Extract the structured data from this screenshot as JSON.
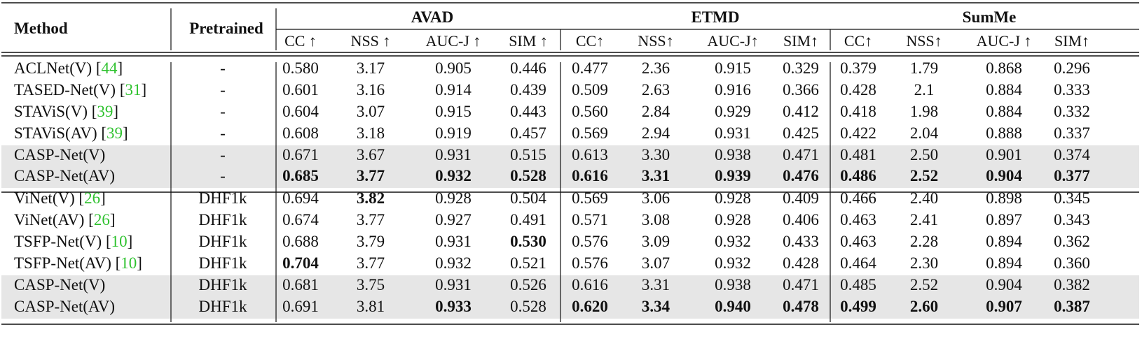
{
  "header": {
    "method": "Method",
    "pretrained": "Pretrained",
    "groups": [
      "AVAD",
      "ETMD",
      "SumMe"
    ],
    "metrics": [
      [
        "CC ↑",
        "NSS ↑",
        "AUC-J ↑",
        "SIM ↑"
      ],
      [
        "CC↑",
        "NSS↑",
        "AUC-J↑",
        "SIM↑"
      ],
      [
        "CC↑",
        "NSS↑",
        "AUC-J ↑",
        "SIM↑"
      ]
    ]
  },
  "rows": [
    {
      "name": "ACLNet(V) [",
      "ref": "44",
      "close": "]",
      "pre": "-",
      "shade": false,
      "vals": [
        "0.580",
        "3.17",
        "0.905",
        "0.446",
        "0.477",
        "2.36",
        "0.915",
        "0.329",
        "0.379",
        "1.79",
        "0.868",
        "0.296"
      ],
      "bold": []
    },
    {
      "name": "TASED-Net(V) [",
      "ref": "31",
      "close": "]",
      "pre": "-",
      "shade": false,
      "vals": [
        "0.601",
        "3.16",
        "0.914",
        "0.439",
        "0.509",
        "2.63",
        "0.916",
        "0.366",
        "0.428",
        "2.1",
        "0.884",
        "0.333"
      ],
      "bold": []
    },
    {
      "name": "STAViS(V) [",
      "ref": "39",
      "close": "]",
      "pre": "-",
      "shade": false,
      "vals": [
        "0.604",
        "3.07",
        "0.915",
        "0.443",
        "0.560",
        "2.84",
        "0.929",
        "0.412",
        "0.418",
        "1.98",
        "0.884",
        "0.332"
      ],
      "bold": []
    },
    {
      "name": "STAViS(AV) [",
      "ref": "39",
      "close": "]",
      "pre": "-",
      "shade": false,
      "vals": [
        "0.608",
        "3.18",
        "0.919",
        "0.457",
        "0.569",
        "2.94",
        "0.931",
        "0.425",
        "0.422",
        "2.04",
        "0.888",
        "0.337"
      ],
      "bold": []
    },
    {
      "name": "CASP-Net(V)",
      "ref": "",
      "close": "",
      "pre": "-",
      "shade": true,
      "vals": [
        "0.671",
        "3.67",
        "0.931",
        "0.515",
        "0.613",
        "3.30",
        "0.938",
        "0.471",
        "0.481",
        "2.50",
        "0.901",
        "0.374"
      ],
      "bold": []
    },
    {
      "name": "CASP-Net(AV)",
      "ref": "",
      "close": "",
      "pre": "-",
      "shade": true,
      "vals": [
        "0.685",
        "3.77",
        "0.932",
        "0.528",
        "0.616",
        "3.31",
        "0.939",
        "0.476",
        "0.486",
        "2.52",
        "0.904",
        "0.377"
      ],
      "bold": [
        0,
        1,
        2,
        3,
        4,
        5,
        6,
        7,
        8,
        9,
        10,
        11
      ]
    },
    {
      "name": "ViNet(V) [",
      "ref": "26",
      "close": "]",
      "pre": "DHF1k",
      "shade": false,
      "vals": [
        "0.694",
        "3.82",
        "0.928",
        "0.504",
        "0.569",
        "3.06",
        "0.928",
        "0.409",
        "0.466",
        "2.40",
        "0.898",
        "0.345"
      ],
      "bold": [
        1
      ]
    },
    {
      "name": "ViNet(AV) [",
      "ref": "26",
      "close": "]",
      "pre": "DHF1k",
      "shade": false,
      "vals": [
        "0.674",
        "3.77",
        "0.927",
        "0.491",
        "0.571",
        "3.08",
        "0.928",
        "0.406",
        "0.463",
        "2.41",
        "0.897",
        "0.343"
      ],
      "bold": []
    },
    {
      "name": "TSFP-Net(V) [",
      "ref": "10",
      "close": "]",
      "pre": "DHF1k",
      "shade": false,
      "vals": [
        "0.688",
        "3.79",
        "0.931",
        "0.530",
        "0.576",
        "3.09",
        "0.932",
        "0.433",
        "0.463",
        "2.28",
        "0.894",
        "0.362"
      ],
      "bold": [
        3
      ]
    },
    {
      "name": "TSFP-Net(AV) [",
      "ref": "10",
      "close": "]",
      "pre": "DHF1k",
      "shade": false,
      "vals": [
        "0.704",
        "3.77",
        "0.932",
        "0.521",
        "0.576",
        "3.07",
        "0.932",
        "0.428",
        "0.464",
        "2.30",
        "0.894",
        "0.360"
      ],
      "bold": [
        0
      ]
    },
    {
      "name": "CASP-Net(V)",
      "ref": "",
      "close": "",
      "pre": "DHF1k",
      "shade": true,
      "vals": [
        "0.681",
        "3.75",
        "0.931",
        "0.526",
        "0.616",
        "3.31",
        "0.938",
        "0.471",
        "0.485",
        "2.52",
        "0.904",
        "0.382"
      ],
      "bold": []
    },
    {
      "name": "CASP-Net(AV)",
      "ref": "",
      "close": "",
      "pre": "DHF1k",
      "shade": true,
      "vals": [
        "0.691",
        "3.81",
        "0.933",
        "0.528",
        "0.620",
        "3.34",
        "0.940",
        "0.478",
        "0.499",
        "2.60",
        "0.907",
        "0.387"
      ],
      "bold": [
        2,
        4,
        5,
        6,
        7,
        8,
        9,
        10,
        11
      ]
    }
  ],
  "colors": {
    "shade": "#e6e6e6",
    "ref": "#2fc22f",
    "text": "#111111"
  }
}
